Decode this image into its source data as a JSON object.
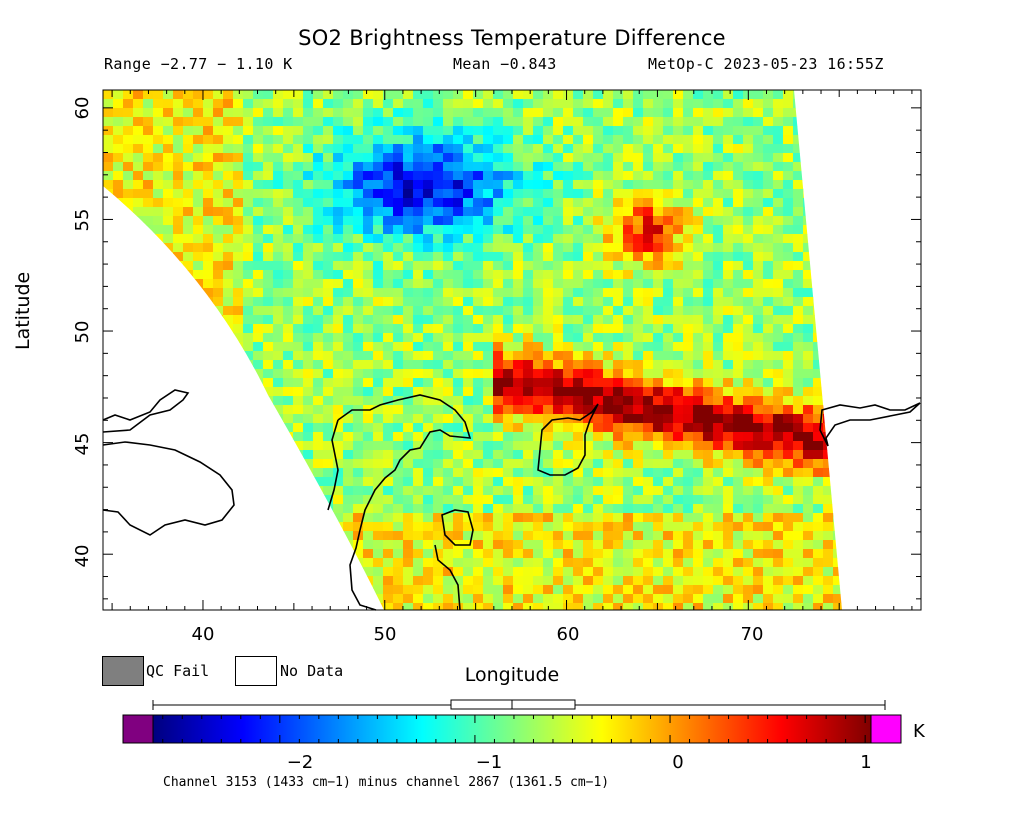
{
  "title": "SO2 Brightness Temperature Difference",
  "header": {
    "range": "Range −2.77 − 1.10 K",
    "mean": "Mean −0.843",
    "satellite_time": "MetOp-C 2023-05-23 16:55Z"
  },
  "axes": {
    "xlabel": "Longitude",
    "ylabel": "Latitude",
    "x_ticks": [
      "40",
      "50",
      "60",
      "70"
    ],
    "y_ticks": [
      "60",
      "55",
      "50",
      "45",
      "40"
    ]
  },
  "legend": {
    "qc_fail_label": "QC Fail",
    "qc_fail_color": "#7f7f7f",
    "no_data_label": "No Data",
    "no_data_color": "#ffffff"
  },
  "colorbar": {
    "unit": "K",
    "tick_labels": [
      "−2",
      "−1",
      "0",
      "1"
    ],
    "under_color": "#800080",
    "over_color": "#ff00ff"
  },
  "footnote": "Channel 3153 (1433 cm−1) minus channel 2867 (1361.5 cm−1)",
  "chart_data": {
    "type": "heatmap",
    "title": "SO2 Brightness Temperature Difference",
    "xlabel": "Longitude",
    "ylabel": "Latitude",
    "xlim": [
      34.5,
      79.5
    ],
    "ylim": [
      37.5,
      60.8
    ],
    "value_range": [
      -2.77,
      1.1
    ],
    "value_mean": -0.843,
    "colorbar_range": [
      -2.65,
      1.03
    ],
    "boxplot": {
      "min": -2.77,
      "q1": -1.2,
      "median": -0.843,
      "q3": -0.55,
      "max": 1.1
    },
    "hotspots": [
      {
        "name": "SO2 plume band",
        "lon_range": [
          56,
          74
        ],
        "lat_range": [
          44.5,
          48.5
        ],
        "value": 0.9
      },
      {
        "name": "elevated region",
        "lon_range": [
          63,
          66
        ],
        "lat_range": [
          53,
          56
        ],
        "value": 0.4
      },
      {
        "name": "cold region",
        "lon_range": [
          48,
          56
        ],
        "lat_range": [
          54,
          58.5
        ],
        "value": -2.3
      }
    ]
  }
}
